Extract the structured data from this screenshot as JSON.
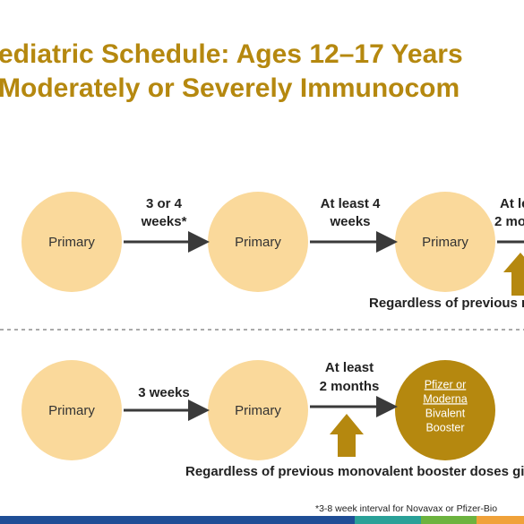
{
  "title": {
    "line1": "ediatric Schedule: Ages 12–17 Years",
    "line2": "Moderately or Severely Immunocom"
  },
  "row1": {
    "nodes": [
      "Primary",
      "Primary",
      "Primary"
    ],
    "intervals": [
      [
        "3 or 4",
        "weeks*"
      ],
      [
        "At least 4",
        "weeks"
      ],
      [
        "At le",
        "2 mo"
      ]
    ],
    "note": "Regardless of previous m"
  },
  "row2": {
    "nodes": [
      "Primary",
      "Primary"
    ],
    "booster": [
      "Pfizer or",
      "Moderna",
      "Bivalent",
      "Booster"
    ],
    "intervals": [
      [
        "3 weeks"
      ],
      [
        "At least",
        "2 months"
      ]
    ],
    "note": "Regardless of previous monovalent booster doses giv"
  },
  "footnote": "*3-8 week interval for Novavax or Pfizer-Bio"
}
